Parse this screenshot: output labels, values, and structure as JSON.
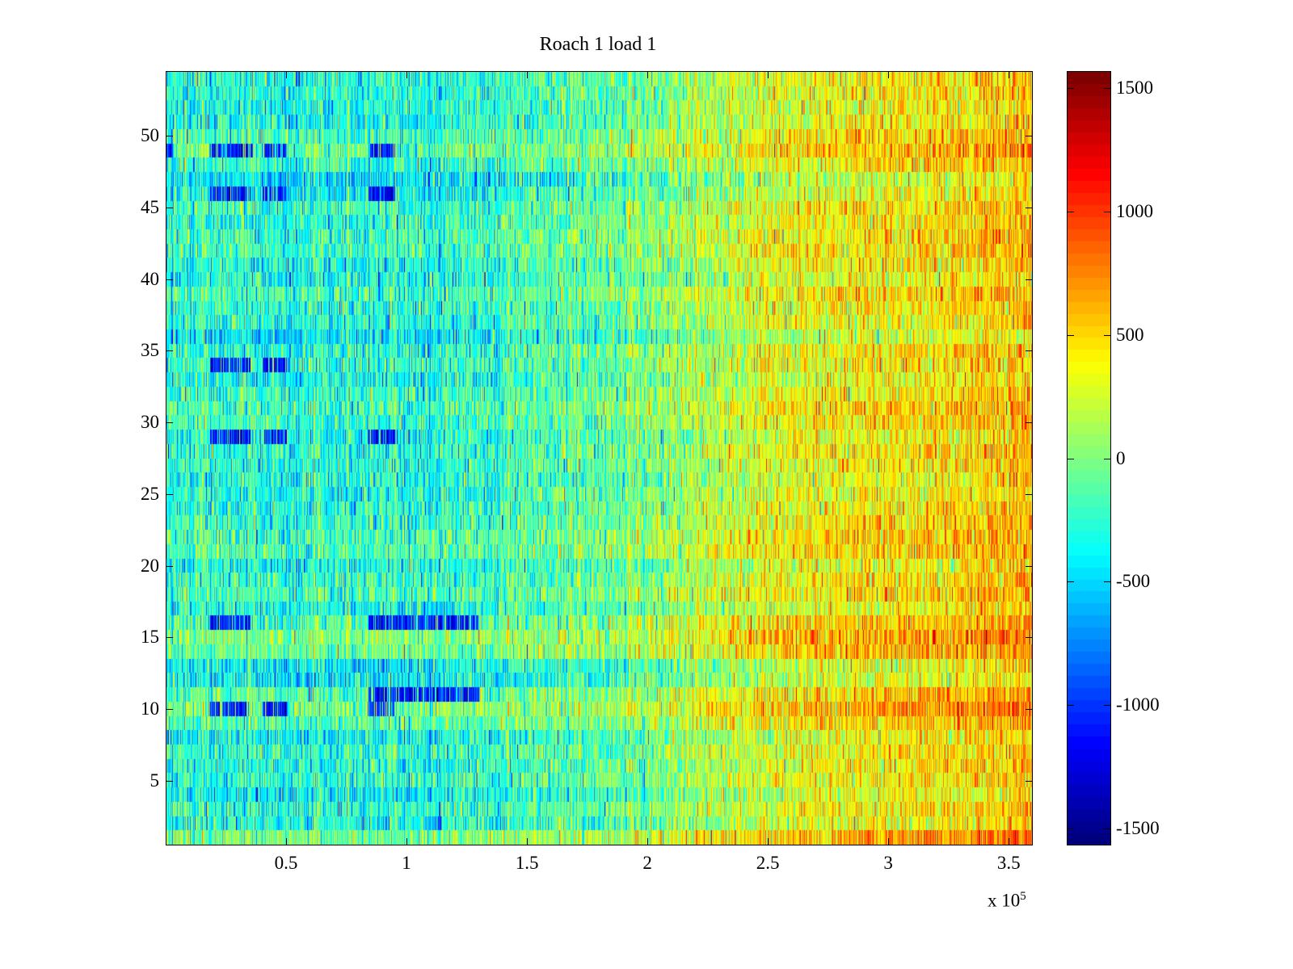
{
  "chart_data": {
    "type": "heatmap",
    "title": "Roach 1 load 1",
    "xlabel": "",
    "ylabel": "",
    "x_multiplier": "x 10",
    "x_multiplier_exp": "5",
    "xlim": [
      0,
      3.6
    ],
    "ylim": [
      0.5,
      54.5
    ],
    "rows": 54,
    "x_ticks": [
      0.5,
      1,
      1.5,
      2,
      2.5,
      3,
      3.5
    ],
    "x_tick_labels": [
      "0.5",
      "1",
      "1.5",
      "2",
      "2.5",
      "3",
      "3.5"
    ],
    "y_ticks": [
      5,
      10,
      15,
      20,
      25,
      30,
      35,
      40,
      45,
      50
    ],
    "y_tick_labels": [
      "5",
      "10",
      "15",
      "20",
      "25",
      "30",
      "35",
      "40",
      "45",
      "50"
    ],
    "colormap": "jet",
    "clim": [
      -1570,
      1570
    ],
    "colorbar_ticks": [
      1500,
      1000,
      500,
      0,
      -500,
      -1000,
      -1500
    ],
    "colorbar_tick_labels": [
      "1500",
      "1000",
      "500",
      "0",
      "-500",
      "-1000",
      "-1500"
    ],
    "trend": {
      "x": [
        0,
        1,
        2,
        2.5,
        3,
        3.6
      ],
      "mean_value": [
        -250,
        -300,
        -50,
        300,
        400,
        550
      ]
    },
    "noise_std": 260,
    "low_bands": [
      {
        "row": 49,
        "x": [
          [
            0,
            0.03
          ],
          [
            0.18,
            0.36
          ],
          [
            0.4,
            0.5
          ],
          [
            0.84,
            0.95
          ]
        ]
      },
      {
        "row": 10,
        "x": [
          [
            0.18,
            0.35
          ],
          [
            0.4,
            0.5
          ],
          [
            0.84,
            0.95
          ]
        ]
      },
      {
        "row": 29,
        "x": [
          [
            0.18,
            0.35
          ],
          [
            0.4,
            0.5
          ],
          [
            0.84,
            0.95
          ]
        ]
      },
      {
        "row": 34,
        "x": [
          [
            0.18,
            0.35
          ],
          [
            0.4,
            0.5
          ]
        ]
      },
      {
        "row": 46,
        "x": [
          [
            0.18,
            0.35
          ],
          [
            0.4,
            0.5
          ],
          [
            0.84,
            0.95
          ]
        ]
      },
      {
        "row": 16,
        "x": [
          [
            0.18,
            0.35
          ],
          [
            0.84,
            1.3
          ]
        ]
      },
      {
        "row": 11,
        "x": [
          [
            0.84,
            1.3
          ]
        ]
      }
    ],
    "high_rows": [
      14,
      15,
      21,
      22,
      10,
      11,
      50,
      49
    ]
  }
}
